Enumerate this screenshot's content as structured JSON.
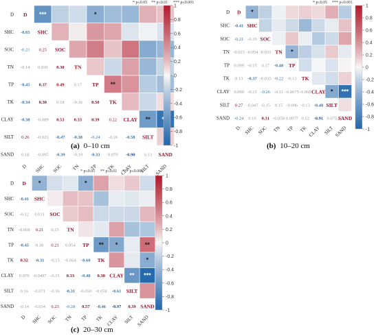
{
  "labels": [
    "D",
    "SHC",
    "SOC",
    "TN",
    "TP",
    "TK",
    "CLAY",
    "SILT",
    "SAND"
  ],
  "significance_legend": {
    "p05": "* p≤0.05",
    "p01": "** p≤0.01",
    "p001": "*** p≤0.001"
  },
  "colorbar": {
    "ticks": [
      "1",
      "0.8",
      "0.6",
      "0.4",
      "0.2",
      "0",
      "-0.2",
      "-0.4",
      "-0.6",
      "-0.8",
      "-1"
    ],
    "colors": {
      "positive": "#b2182b",
      "neutral": "#f7f7f7",
      "negative": "#2166ac"
    }
  },
  "chart_data": [
    {
      "type": "heatmap",
      "caption_letter": "(a)",
      "caption_text": "0–10 cm",
      "lower_triangle_values": [
        [
          "-0.65"
        ],
        [
          "-0.21",
          "0.25"
        ],
        [
          "-0.14",
          "0.030",
          "0.30"
        ],
        [
          "-0.45",
          "0.37",
          "0.49",
          "0.17"
        ],
        [
          "-0.34",
          "0.30",
          "0.18",
          "-0.16",
          "0.50"
        ],
        [
          "-0.38",
          "-0.089",
          "0.53",
          "0.33",
          "0.39",
          "0.22"
        ],
        [
          "0.26",
          "-0.021",
          "-0.47",
          "-0.38",
          "-0.24",
          "-0.16",
          "-0.58"
        ],
        [
          "0.18",
          "-0.095",
          "-0.39",
          "-0.19",
          "-0.33",
          "0.079",
          "-0.90",
          "0.13"
        ]
      ],
      "upper_triangle_values": [
        [
          -0.65,
          -0.21,
          -0.14,
          -0.45,
          -0.34,
          -0.38,
          0.26,
          0.18
        ],
        [
          0.25,
          0.03,
          0.37,
          0.3,
          -0.089,
          -0.021,
          -0.095
        ],
        [
          0.3,
          0.49,
          0.18,
          0.53,
          -0.47,
          -0.39
        ],
        [
          0.17,
          -0.16,
          0.33,
          -0.38,
          -0.19
        ],
        [
          0.5,
          0.39,
          -0.24,
          -0.33
        ],
        [
          0.22,
          -0.16,
          0.079
        ],
        [
          -0.58,
          -0.9
        ],
        [
          0.13
        ]
      ],
      "upper_triangle_stars": [
        [
          "***",
          "",
          "",
          "*",
          "",
          "",
          "",
          ""
        ],
        [
          "",
          "",
          "",
          "",
          "",
          "",
          ""
        ],
        [
          "",
          "",
          "",
          "",
          "",
          ""
        ],
        [
          "",
          "",
          "",
          "",
          ""
        ],
        [
          "**",
          "",
          "",
          ""
        ],
        [
          "",
          "",
          ""
        ],
        [
          "**",
          "***"
        ],
        [
          ""
        ]
      ]
    },
    {
      "type": "heatmap",
      "caption_letter": "(b)",
      "caption_text": "10–20 cm",
      "lower_triangle_values": [
        [
          "-0.41"
        ],
        [
          "-0.21",
          "-0.19"
        ],
        [
          "-0.023",
          "-0.054",
          "-0.031"
        ],
        [
          "0.099",
          "-0.15",
          "0.17",
          "-0.40"
        ],
        [
          "0.13",
          "-0.37",
          "-0.035",
          "-0.22",
          "-0.13"
        ],
        [
          "0.099",
          "-0.15",
          "-0.26",
          "-0.11",
          "-0.0075",
          "-0.068"
        ],
        [
          "0.27",
          "-0.047",
          "-0.15",
          "0.15",
          "-0.096",
          "-0.13",
          "-0.48"
        ],
        [
          "-0.24",
          "0.19",
          "0.31",
          "-0.058",
          "0.0077",
          "0.12",
          "-0.91",
          "0.075"
        ]
      ],
      "upper_triangle_values": [
        [
          -0.41,
          -0.21,
          -0.023,
          0.099,
          0.13,
          0.099,
          0.27,
          -0.24
        ],
        [
          -0.19,
          -0.054,
          -0.15,
          -0.37,
          -0.15,
          -0.047,
          0.19
        ],
        [
          -0.031,
          0.17,
          -0.035,
          -0.26,
          -0.15,
          0.31
        ],
        [
          -0.4,
          -0.22,
          -0.11,
          0.15,
          -0.058
        ],
        [
          -0.13,
          -0.0075,
          -0.096,
          0.0077
        ],
        [
          -0.068,
          -0.13,
          0.12
        ],
        [
          -0.48,
          -0.91
        ],
        [
          0.075
        ]
      ],
      "upper_triangle_stars": [
        [
          "*",
          "",
          "",
          "",
          "",
          "",
          "",
          ""
        ],
        [
          "",
          "",
          "",
          "",
          "",
          "",
          ""
        ],
        [
          "",
          "",
          "",
          "",
          "",
          ""
        ],
        [
          "*",
          "",
          "",
          "",
          ""
        ],
        [
          "",
          "",
          "",
          ""
        ],
        [
          "",
          "",
          ""
        ],
        [
          "*",
          "***"
        ],
        [
          ""
        ]
      ]
    },
    {
      "type": "heatmap",
      "caption_letter": "(c)",
      "caption_text": "20–30 cm",
      "lower_triangle_values": [
        [
          "-0.41"
        ],
        [
          "-0.12",
          "0.031"
        ],
        [
          "-0.068",
          "0.21",
          "0.15"
        ],
        [
          "-0.45",
          "0.18",
          "0.21",
          "0.054"
        ],
        [
          "0.32",
          "-0.31",
          "-0.15",
          "-0.064",
          "-0.60"
        ],
        [
          "0.079",
          "-0.0497",
          "-0.15",
          "0.33",
          "-0.48",
          "0.38"
        ],
        [
          "0.16",
          "-0.071",
          "-0.16",
          "-0.31",
          "-0.050",
          "-0.058",
          "-0.61"
        ],
        [
          "-0.14",
          "-0.034",
          "0.23",
          "-0.28",
          "0.57",
          "-0.46",
          "-0.97",
          "0.39"
        ]
      ],
      "upper_triangle_values": [
        [
          -0.41,
          -0.12,
          -0.068,
          -0.45,
          0.32,
          0.079,
          0.16,
          -0.14
        ],
        [
          0.031,
          0.21,
          0.18,
          -0.31,
          -0.0497,
          -0.071,
          -0.034
        ],
        [
          0.15,
          0.21,
          -0.15,
          -0.15,
          -0.16,
          0.23
        ],
        [
          0.054,
          -0.064,
          0.33,
          -0.31,
          -0.28
        ],
        [
          -0.6,
          -0.48,
          -0.05,
          0.57
        ],
        [
          0.38,
          -0.058,
          -0.46
        ],
        [
          -0.61,
          -0.97
        ],
        [
          0.39
        ]
      ],
      "upper_triangle_stars": [
        [
          "*",
          "",
          "",
          "*",
          "",
          "",
          "",
          ""
        ],
        [
          "",
          "",
          "",
          "",
          "",
          "",
          ""
        ],
        [
          "",
          "",
          "",
          "",
          "",
          ""
        ],
        [
          "",
          "",
          "",
          "",
          ""
        ],
        [
          "**",
          "*",
          "",
          "**"
        ],
        [
          "",
          "",
          "*"
        ],
        [
          "**",
          "***"
        ],
        [
          ""
        ]
      ]
    }
  ]
}
